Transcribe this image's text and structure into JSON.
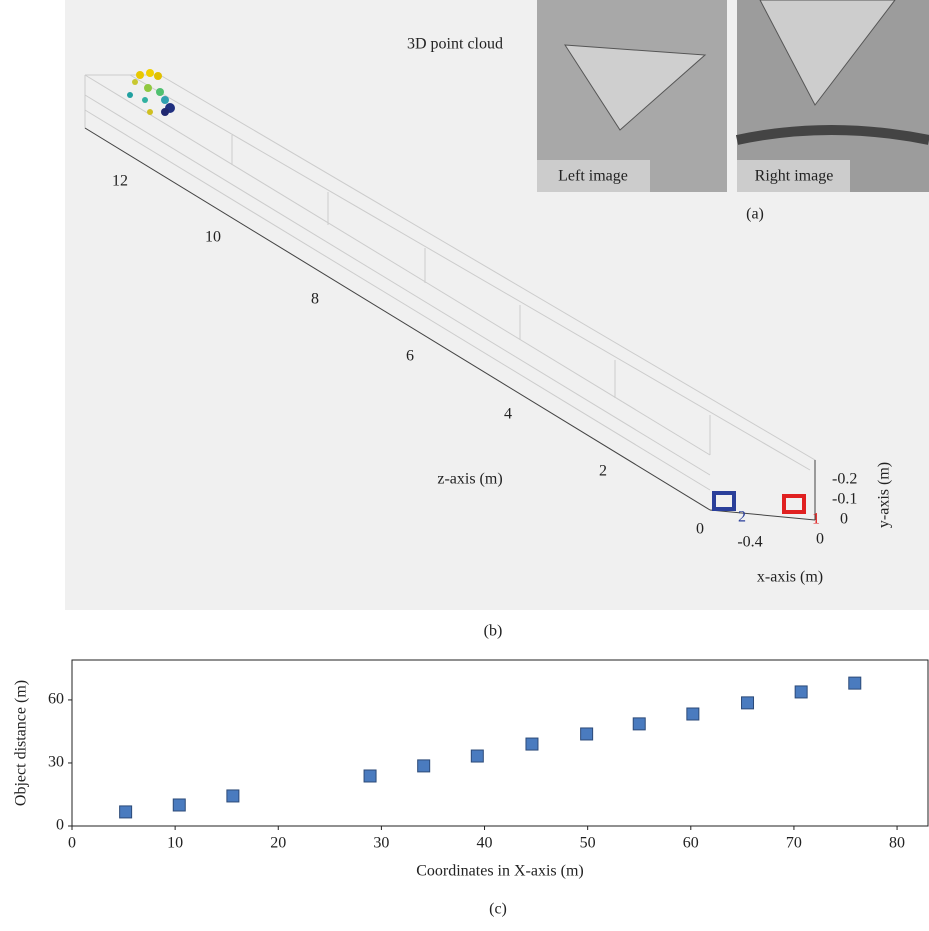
{
  "panel_a": {
    "title": "3D point cloud",
    "left_label": "Left image",
    "right_label": "Right image",
    "caption": "(a)"
  },
  "panel_b": {
    "z_label": "z-axis (m)",
    "x_label": "x-axis (m)",
    "y_label": "y-axis (m)",
    "z_ticks": [
      0,
      2,
      4,
      6,
      8,
      10,
      12
    ],
    "x_ticks": [
      -0.4,
      0
    ],
    "y_ticks": [
      -0.2,
      -0.1,
      0
    ],
    "markers": [
      "1",
      "2"
    ],
    "caption": "(b)"
  },
  "chart_data": {
    "type": "scatter",
    "x_label": "Coordinates in X-axis (m)",
    "y_label": "Object distance (m)",
    "caption": "(c)",
    "x": [
      5.2,
      10.4,
      15.6,
      28.9,
      34.1,
      39.3,
      44.6,
      49.9,
      55.0,
      60.2,
      65.5,
      70.7,
      75.9
    ],
    "values": [
      6.7,
      10,
      14.3,
      23.8,
      28.6,
      33.3,
      39,
      43.8,
      48.6,
      53.3,
      58.6,
      63.8,
      68
    ],
    "color": "#4a7bbf",
    "xlim": [
      0,
      83
    ],
    "ylim": [
      0,
      79
    ],
    "xticks": [
      0,
      10,
      20,
      30,
      40,
      50,
      60,
      70,
      80
    ],
    "yticks": [
      0,
      30,
      60
    ]
  }
}
